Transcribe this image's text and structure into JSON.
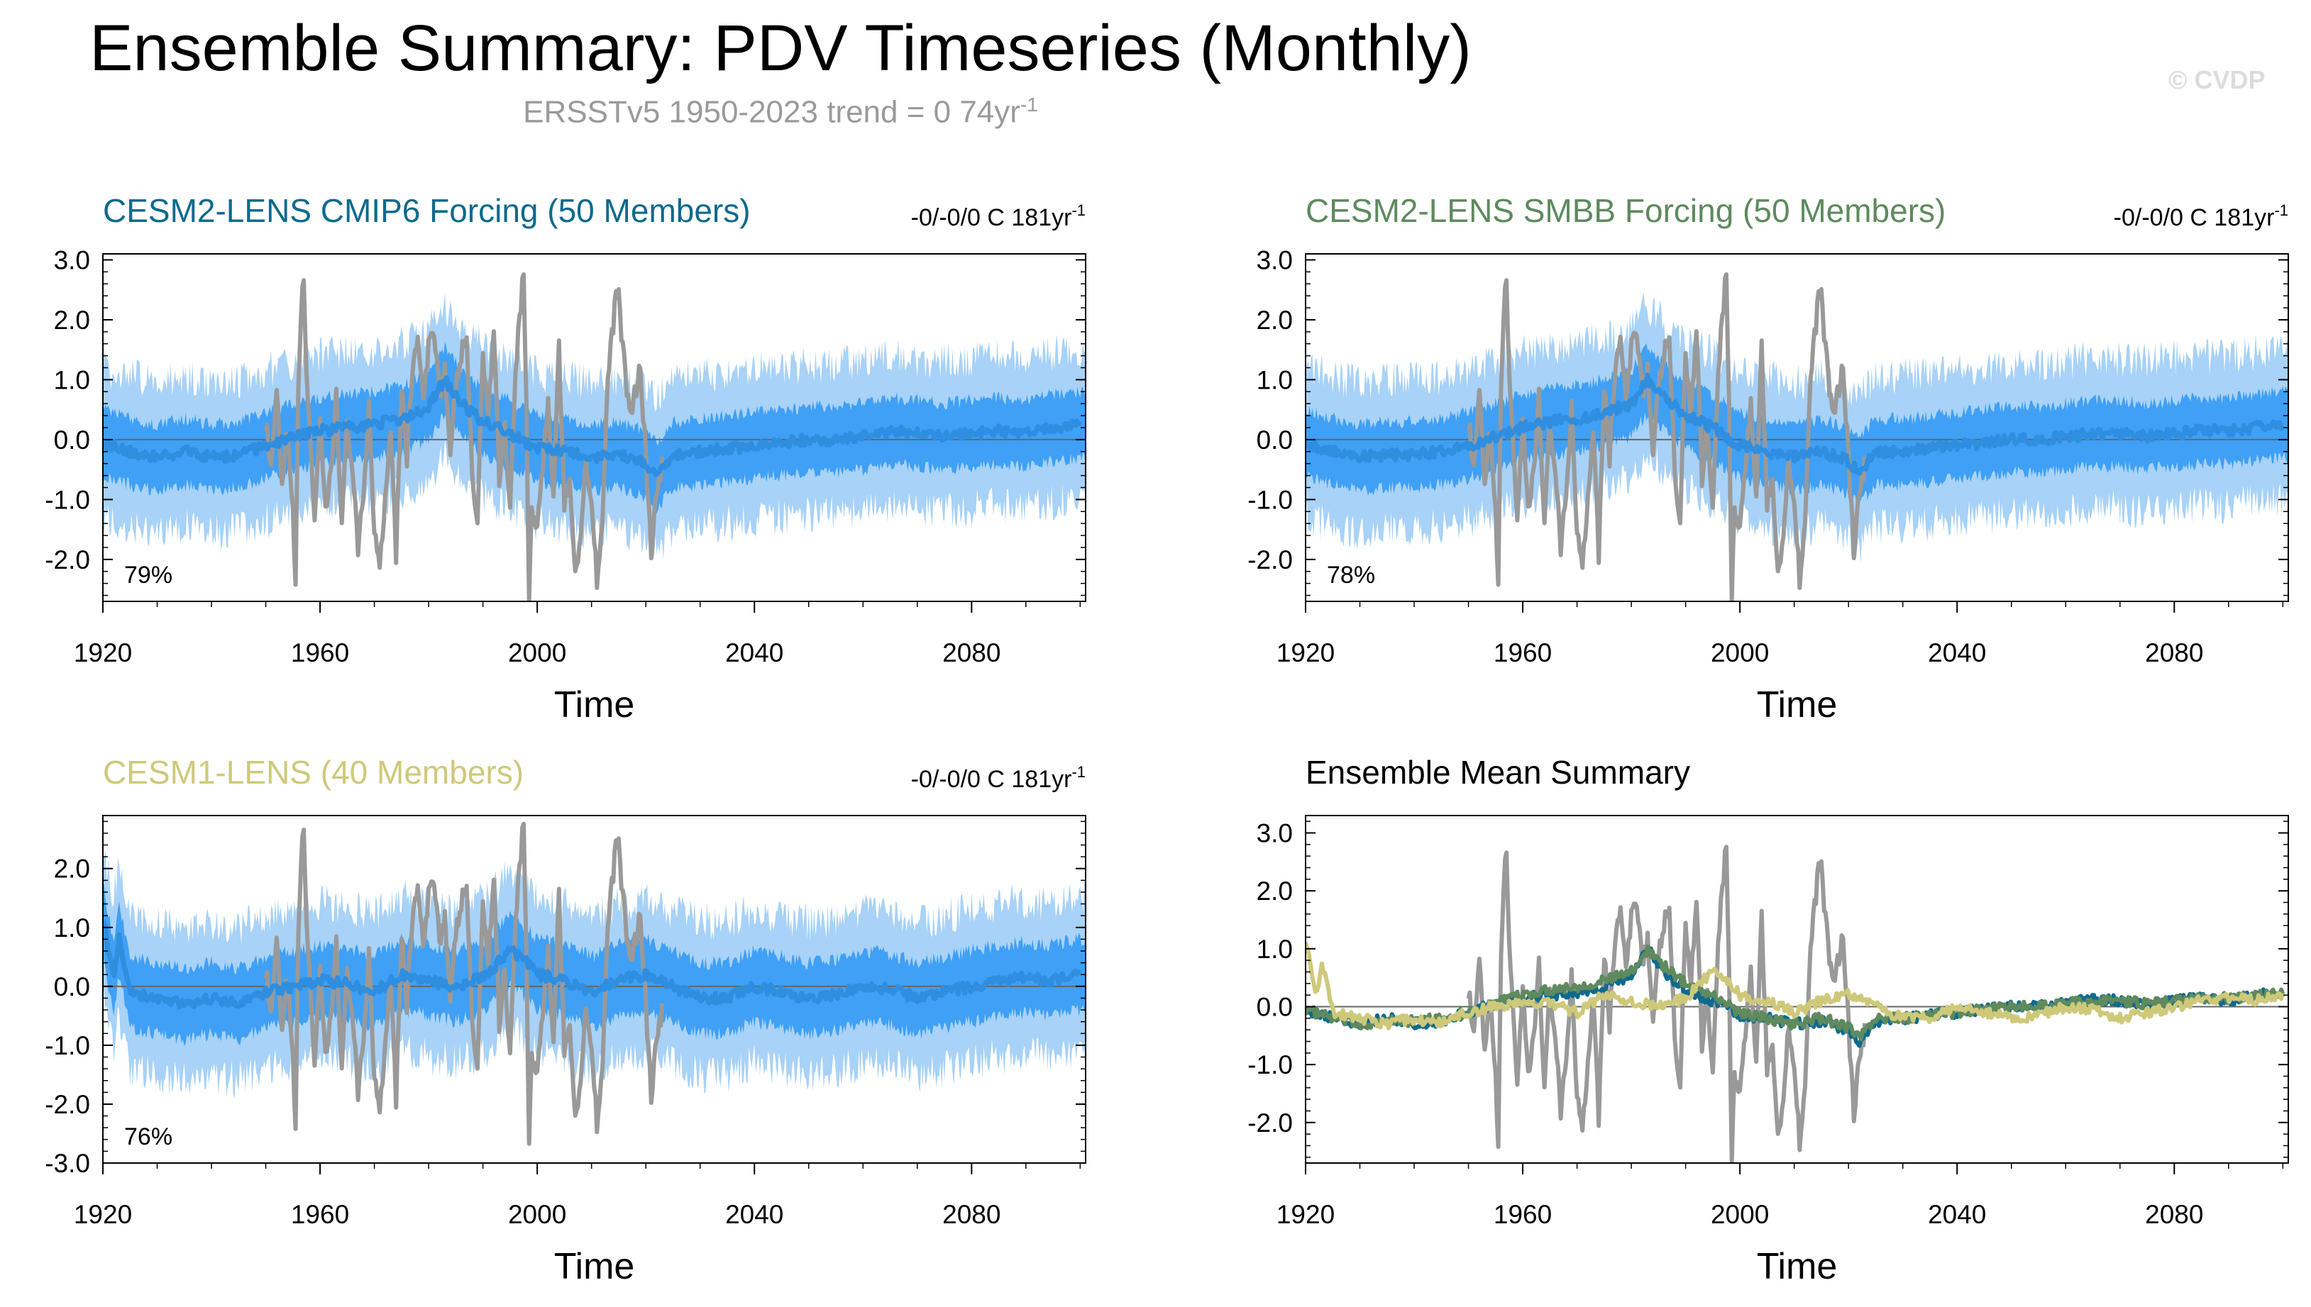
{
  "title": "Ensemble Summary: PDV Timeseries (Monthly)",
  "subtitle": {
    "text": "ERSSTv5 1950-2023 trend = 0 74yr",
    "exponent": "-1"
  },
  "watermark": "© CVDP",
  "colors": {
    "observation": "#999999",
    "ensemble_mean": "#2f8ee0",
    "inner_band": "#3fa0f5",
    "outer_band": "#a8d2f7",
    "cmip6": "#0e6a8e",
    "smbb": "#5e8a5e",
    "cesm1": "#cec97a"
  },
  "chart_data": [
    {
      "id": "cmip6",
      "type": "line",
      "title": "CESM2-LENS CMIP6 Forcing (50 Members)",
      "title_color": "#0e6a8e",
      "trend_label": "-0/-0/0 C 181yr",
      "trend_exponent": "-1",
      "percent_label": "79%",
      "xlabel": "Time",
      "xlim": [
        1920,
        2101
      ],
      "ylim": [
        -2.7,
        3.1
      ],
      "xticks": [
        1920,
        1960,
        2000,
        2040,
        2080
      ],
      "yticks": [
        3.0,
        2.0,
        1.0,
        0.0,
        -1.0,
        -2.0
      ],
      "ytick_labels": [
        "3.0",
        "2.0",
        "1.0",
        "0.0",
        "-1.0",
        "-2.0"
      ],
      "spread_inner": 0.55,
      "spread_outer": 1.25,
      "series": [
        {
          "name": "CESM2-LENS CMIP6 ensemble mean",
          "ref": "cmip6_mean"
        }
      ]
    },
    {
      "id": "smbb",
      "type": "line",
      "title": "CESM2-LENS SMBB Forcing (50 Members)",
      "title_color": "#5e8a5e",
      "trend_label": "-0/-0/0 C 181yr",
      "trend_exponent": "-1",
      "percent_label": "78%",
      "xlabel": "Time",
      "xlim": [
        1920,
        2101
      ],
      "ylim": [
        -2.7,
        3.1
      ],
      "xticks": [
        1920,
        1960,
        2000,
        2040,
        2080
      ],
      "yticks": [
        3.0,
        2.0,
        1.0,
        0.0,
        -1.0,
        -2.0
      ],
      "ytick_labels": [
        "3.0",
        "2.0",
        "1.0",
        "0.0",
        "-1.0",
        "-2.0"
      ],
      "spread_inner": 0.55,
      "spread_outer": 1.25,
      "series": [
        {
          "name": "CESM2-LENS SMBB ensemble mean",
          "ref": "smbb_mean"
        }
      ]
    },
    {
      "id": "cesm1",
      "type": "line",
      "title": "CESM1-LENS (40 Members)",
      "title_color": "#cec97a",
      "trend_label": "-0/-0/0 C 181yr",
      "trend_exponent": "-1",
      "percent_label": "76%",
      "xlabel": "Time",
      "xlim": [
        1920,
        2101
      ],
      "ylim": [
        -3.0,
        2.9
      ],
      "xticks": [
        1920,
        1960,
        2000,
        2040,
        2080
      ],
      "yticks": [
        2.0,
        1.0,
        0.0,
        -1.0,
        -2.0,
        -3.0
      ],
      "ytick_labels": [
        "2.0",
        "1.0",
        "0.0",
        "-1.0",
        "-2.0",
        "-3.0"
      ],
      "spread_inner": 0.6,
      "spread_outer": 1.3,
      "series": [
        {
          "name": "CESM1-LENS ensemble mean",
          "ref": "cesm1_mean"
        }
      ]
    },
    {
      "id": "summary",
      "type": "line",
      "title": "Ensemble Mean Summary",
      "title_color": "#000000",
      "xlabel": "Time",
      "xlim": [
        1920,
        2101
      ],
      "ylim": [
        -2.7,
        3.3
      ],
      "xticks": [
        1920,
        1960,
        2000,
        2040,
        2080
      ],
      "yticks": [
        3.0,
        2.0,
        1.0,
        0.0,
        -1.0,
        -2.0
      ],
      "ytick_labels": [
        "3.0",
        "2.0",
        "1.0",
        "0.0",
        "-1.0",
        "-2.0"
      ],
      "series": [
        {
          "name": "CESM2-LENS CMIP6",
          "ref": "cmip6_mean"
        },
        {
          "name": "CESM2-LENS SMBB",
          "ref": "smbb_mean"
        },
        {
          "name": "CESM1-LENS",
          "ref": "cesm1_mean"
        }
      ]
    }
  ],
  "series_data": {
    "observation": {
      "name": "ERSSTv5",
      "x": [
        1950,
        1951,
        1952,
        1953,
        1954,
        1955,
        1955.5,
        1956,
        1956.5,
        1957,
        1957.5,
        1958,
        1959,
        1960,
        1961,
        1962,
        1963,
        1964,
        1965,
        1966,
        1967,
        1968,
        1969,
        1970,
        1971,
        1972,
        1973,
        1974,
        1975,
        1976,
        1977,
        1978,
        1979,
        1980,
        1981,
        1982,
        1983,
        1984,
        1985,
        1986,
        1987,
        1988,
        1989,
        1990,
        1991,
        1992,
        1993,
        1994,
        1995,
        1996,
        1997,
        1997.5,
        1998,
        1998.5,
        1999,
        2000,
        2001,
        2002,
        2003,
        2004,
        2005,
        2006,
        2007,
        2008,
        2009,
        2010,
        2011,
        2012,
        2013,
        2014,
        2014.5,
        2015,
        2015.5,
        2016,
        2017,
        2018,
        2019,
        2020,
        2021,
        2022,
        2023
      ],
      "y": [
        0.3,
        -0.6,
        0.8,
        -0.9,
        0.2,
        -1.3,
        -2.4,
        0.9,
        2.2,
        2.6,
        1.1,
        0.4,
        -1.4,
        0.2,
        -1.2,
        -0.6,
        0.8,
        -1.5,
        0.3,
        -0.5,
        -1.9,
        -0.9,
        0.6,
        -1.6,
        -2.0,
        -1.0,
        0.3,
        -1.9,
        0.9,
        -0.3,
        1.2,
        1.7,
        0.6,
        1.5,
        1.9,
        0.8,
        1.2,
        -0.4,
        0.9,
        1.4,
        1.7,
        -0.6,
        -1.4,
        1.5,
        0.4,
        1.9,
        -0.6,
        0.3,
        -1.2,
        1.2,
        2.3,
        2.9,
        0.5,
        -2.6,
        -1.2,
        -1.5,
        -0.4,
        0.6,
        -1.0,
        1.6,
        -1.2,
        -0.6,
        -2.2,
        -1.6,
        -0.3,
        -1.0,
        -2.3,
        -1.4,
        1.0,
        1.9,
        2.4,
        2.6,
        1.8,
        1.3,
        0.4,
        0.8,
        1.2,
        -0.3,
        -1.9,
        -0.9,
        -0.4
      ]
    },
    "cmip6_mean": {
      "x": [
        1920,
        1925,
        1930,
        1935,
        1940,
        1945,
        1950,
        1955,
        1960,
        1965,
        1970,
        1975,
        1980,
        1983,
        1986,
        1990,
        1995,
        2000,
        2005,
        2010,
        2015,
        2020,
        2022,
        2025,
        2030,
        2035,
        2040,
        2045,
        2050,
        2055,
        2060,
        2065,
        2070,
        2075,
        2080,
        2085,
        2090,
        2095,
        2100
      ],
      "y": [
        -0.05,
        -0.2,
        -0.3,
        -0.2,
        -0.3,
        -0.25,
        -0.1,
        0.05,
        0.15,
        0.2,
        0.25,
        0.35,
        0.55,
        1.0,
        0.6,
        0.3,
        0.1,
        -0.15,
        -0.2,
        -0.3,
        -0.25,
        -0.4,
        -0.6,
        -0.25,
        -0.2,
        -0.15,
        -0.1,
        -0.05,
        0.0,
        0.0,
        0.05,
        0.15,
        0.1,
        0.05,
        0.1,
        0.15,
        0.1,
        0.2,
        0.25
      ]
    },
    "smbb_mean": {
      "x": [
        1920,
        1925,
        1930,
        1935,
        1940,
        1945,
        1950,
        1955,
        1960,
        1965,
        1970,
        1975,
        1980,
        1983,
        1986,
        1990,
        1995,
        2000,
        2005,
        2010,
        2015,
        2020,
        2022,
        2025,
        2030,
        2035,
        2040,
        2045,
        2050,
        2055,
        2060,
        2065,
        2070,
        2075,
        2080,
        2085,
        2090,
        2095,
        2100
      ],
      "y": [
        -0.05,
        -0.2,
        -0.3,
        -0.25,
        -0.25,
        -0.2,
        -0.1,
        0.05,
        0.2,
        0.3,
        0.35,
        0.45,
        0.6,
        1.0,
        0.7,
        0.4,
        0.2,
        -0.1,
        -0.2,
        -0.3,
        -0.2,
        -0.35,
        -0.55,
        -0.2,
        -0.2,
        -0.15,
        -0.1,
        -0.05,
        0.0,
        0.0,
        0.05,
        0.1,
        0.1,
        0.05,
        0.1,
        0.15,
        0.15,
        0.2,
        0.25
      ]
    },
    "cesm1_mean": {
      "x": [
        1920,
        1921,
        1922,
        1923,
        1925,
        1930,
        1935,
        1940,
        1945,
        1950,
        1955,
        1960,
        1965,
        1970,
        1975,
        1980,
        1985,
        1990,
        1995,
        1997,
        2000,
        2005,
        2010,
        2015,
        2020,
        2025,
        2030,
        2035,
        2040,
        2045,
        2050,
        2055,
        2060,
        2065,
        2070,
        2075,
        2080,
        2085,
        2090,
        2095,
        2100
      ],
      "y": [
        1.2,
        0.6,
        0.2,
        0.8,
        -0.1,
        -0.2,
        -0.3,
        -0.2,
        -0.3,
        -0.1,
        0.0,
        0.1,
        0.05,
        -0.1,
        0.2,
        0.1,
        0.0,
        0.15,
        0.6,
        0.5,
        0.2,
        0.1,
        -0.1,
        0.1,
        0.2,
        0.0,
        -0.2,
        -0.2,
        0.0,
        -0.1,
        -0.2,
        -0.15,
        0.0,
        -0.05,
        -0.2,
        -0.1,
        0.0,
        0.1,
        0.15,
        0.1,
        0.2
      ]
    }
  }
}
